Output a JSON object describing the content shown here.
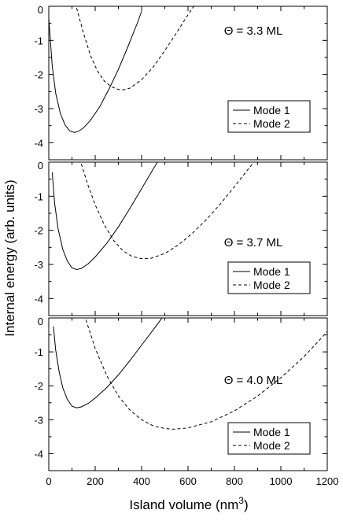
{
  "ylabel": "Internal energy (arb. units)",
  "xlabel": "Island volume (nm",
  "xlabel_sup": "3",
  "xlabel_close": ")",
  "chart_data": [
    {
      "type": "line",
      "annotation": "Θ = 3.3 ML",
      "legend_position": "lower-right",
      "xlim": [
        0,
        1200
      ],
      "ylim": [
        -4.5,
        0
      ],
      "x_ticks": [
        0,
        200,
        400,
        600,
        800,
        1000,
        1200
      ],
      "y_ticks": [
        0,
        -1,
        -2,
        -3,
        -4
      ],
      "y_tick_labels": [
        "0",
        "-1",
        "-2",
        "-3",
        "-4"
      ],
      "series": [
        {
          "name": "Mode 1",
          "style": "solid",
          "x": [
            0,
            15,
            30,
            50,
            70,
            90,
            110,
            130,
            150,
            180,
            220,
            260,
            300,
            340,
            380,
            400
          ],
          "y": [
            -0.35,
            -1.75,
            -2.55,
            -3.15,
            -3.48,
            -3.65,
            -3.7,
            -3.66,
            -3.56,
            -3.34,
            -2.94,
            -2.42,
            -1.85,
            -1.2,
            -0.52,
            -0.15
          ]
        },
        {
          "name": "Mode 2",
          "style": "dashed",
          "x": [
            120,
            150,
            180,
            210,
            240,
            270,
            300,
            320,
            350,
            400,
            450,
            500,
            550,
            600,
            630
          ],
          "y": [
            -0.05,
            -0.8,
            -1.45,
            -1.9,
            -2.2,
            -2.36,
            -2.44,
            -2.45,
            -2.4,
            -2.15,
            -1.78,
            -1.3,
            -0.78,
            -0.25,
            0.05
          ]
        }
      ]
    },
    {
      "type": "line",
      "annotation": "Θ = 3.7 ML",
      "legend_position": "lower-right",
      "xlim": [
        0,
        1200
      ],
      "ylim": [
        -4.5,
        0
      ],
      "x_ticks": [
        0,
        200,
        400,
        600,
        800,
        1000,
        1200
      ],
      "y_ticks": [
        0,
        -1,
        -2,
        -3,
        -4
      ],
      "y_tick_labels": [
        "0",
        "-1",
        "-2",
        "-3",
        "-4"
      ],
      "series": [
        {
          "name": "Mode 1",
          "style": "solid",
          "x": [
            15,
            25,
            40,
            60,
            80,
            100,
            120,
            140,
            170,
            200,
            250,
            300,
            350,
            400,
            450,
            470
          ],
          "y": [
            -0.3,
            -1.2,
            -1.95,
            -2.55,
            -2.9,
            -3.1,
            -3.15,
            -3.12,
            -2.98,
            -2.78,
            -2.38,
            -1.9,
            -1.35,
            -0.78,
            -0.2,
            0.02
          ]
        },
        {
          "name": "Mode 2",
          "style": "dashed",
          "x": [
            140,
            170,
            200,
            240,
            280,
            320,
            360,
            400,
            440,
            500,
            560,
            620,
            680,
            740,
            800,
            860,
            890
          ],
          "y": [
            -0.05,
            -0.7,
            -1.25,
            -1.85,
            -2.3,
            -2.6,
            -2.77,
            -2.83,
            -2.82,
            -2.68,
            -2.42,
            -2.08,
            -1.68,
            -1.22,
            -0.72,
            -0.2,
            0.05
          ]
        }
      ]
    },
    {
      "type": "line",
      "annotation": "Θ = 4.0 ML",
      "legend_position": "lower-right",
      "xlim": [
        0,
        1200
      ],
      "ylim": [
        -4.5,
        0
      ],
      "x_ticks": [
        0,
        200,
        400,
        600,
        800,
        1000,
        1200
      ],
      "y_ticks": [
        0,
        -1,
        -2,
        -3,
        -4
      ],
      "y_tick_labels": [
        "0",
        "-1",
        "-2",
        "-3",
        "-4"
      ],
      "x_tick_labels": [
        "0",
        "200",
        "400",
        "600",
        "800",
        "1000",
        "1200"
      ],
      "series": [
        {
          "name": "Mode 1",
          "style": "solid",
          "x": [
            20,
            30,
            45,
            60,
            80,
            100,
            120,
            140,
            170,
            200,
            250,
            300,
            350,
            400,
            450,
            490
          ],
          "y": [
            -0.25,
            -0.95,
            -1.6,
            -2.05,
            -2.4,
            -2.6,
            -2.65,
            -2.62,
            -2.52,
            -2.36,
            -2.05,
            -1.68,
            -1.25,
            -0.8,
            -0.35,
            0.02
          ]
        },
        {
          "name": "Mode 2",
          "style": "dashed",
          "x": [
            160,
            200,
            250,
            300,
            350,
            400,
            450,
            500,
            540,
            600,
            700,
            800,
            900,
            1000,
            1100,
            1160,
            1200
          ],
          "y": [
            -0.05,
            -0.9,
            -1.7,
            -2.3,
            -2.72,
            -3.0,
            -3.18,
            -3.26,
            -3.28,
            -3.24,
            -3.06,
            -2.74,
            -2.3,
            -1.76,
            -1.14,
            -0.7,
            -0.4
          ]
        }
      ]
    }
  ]
}
